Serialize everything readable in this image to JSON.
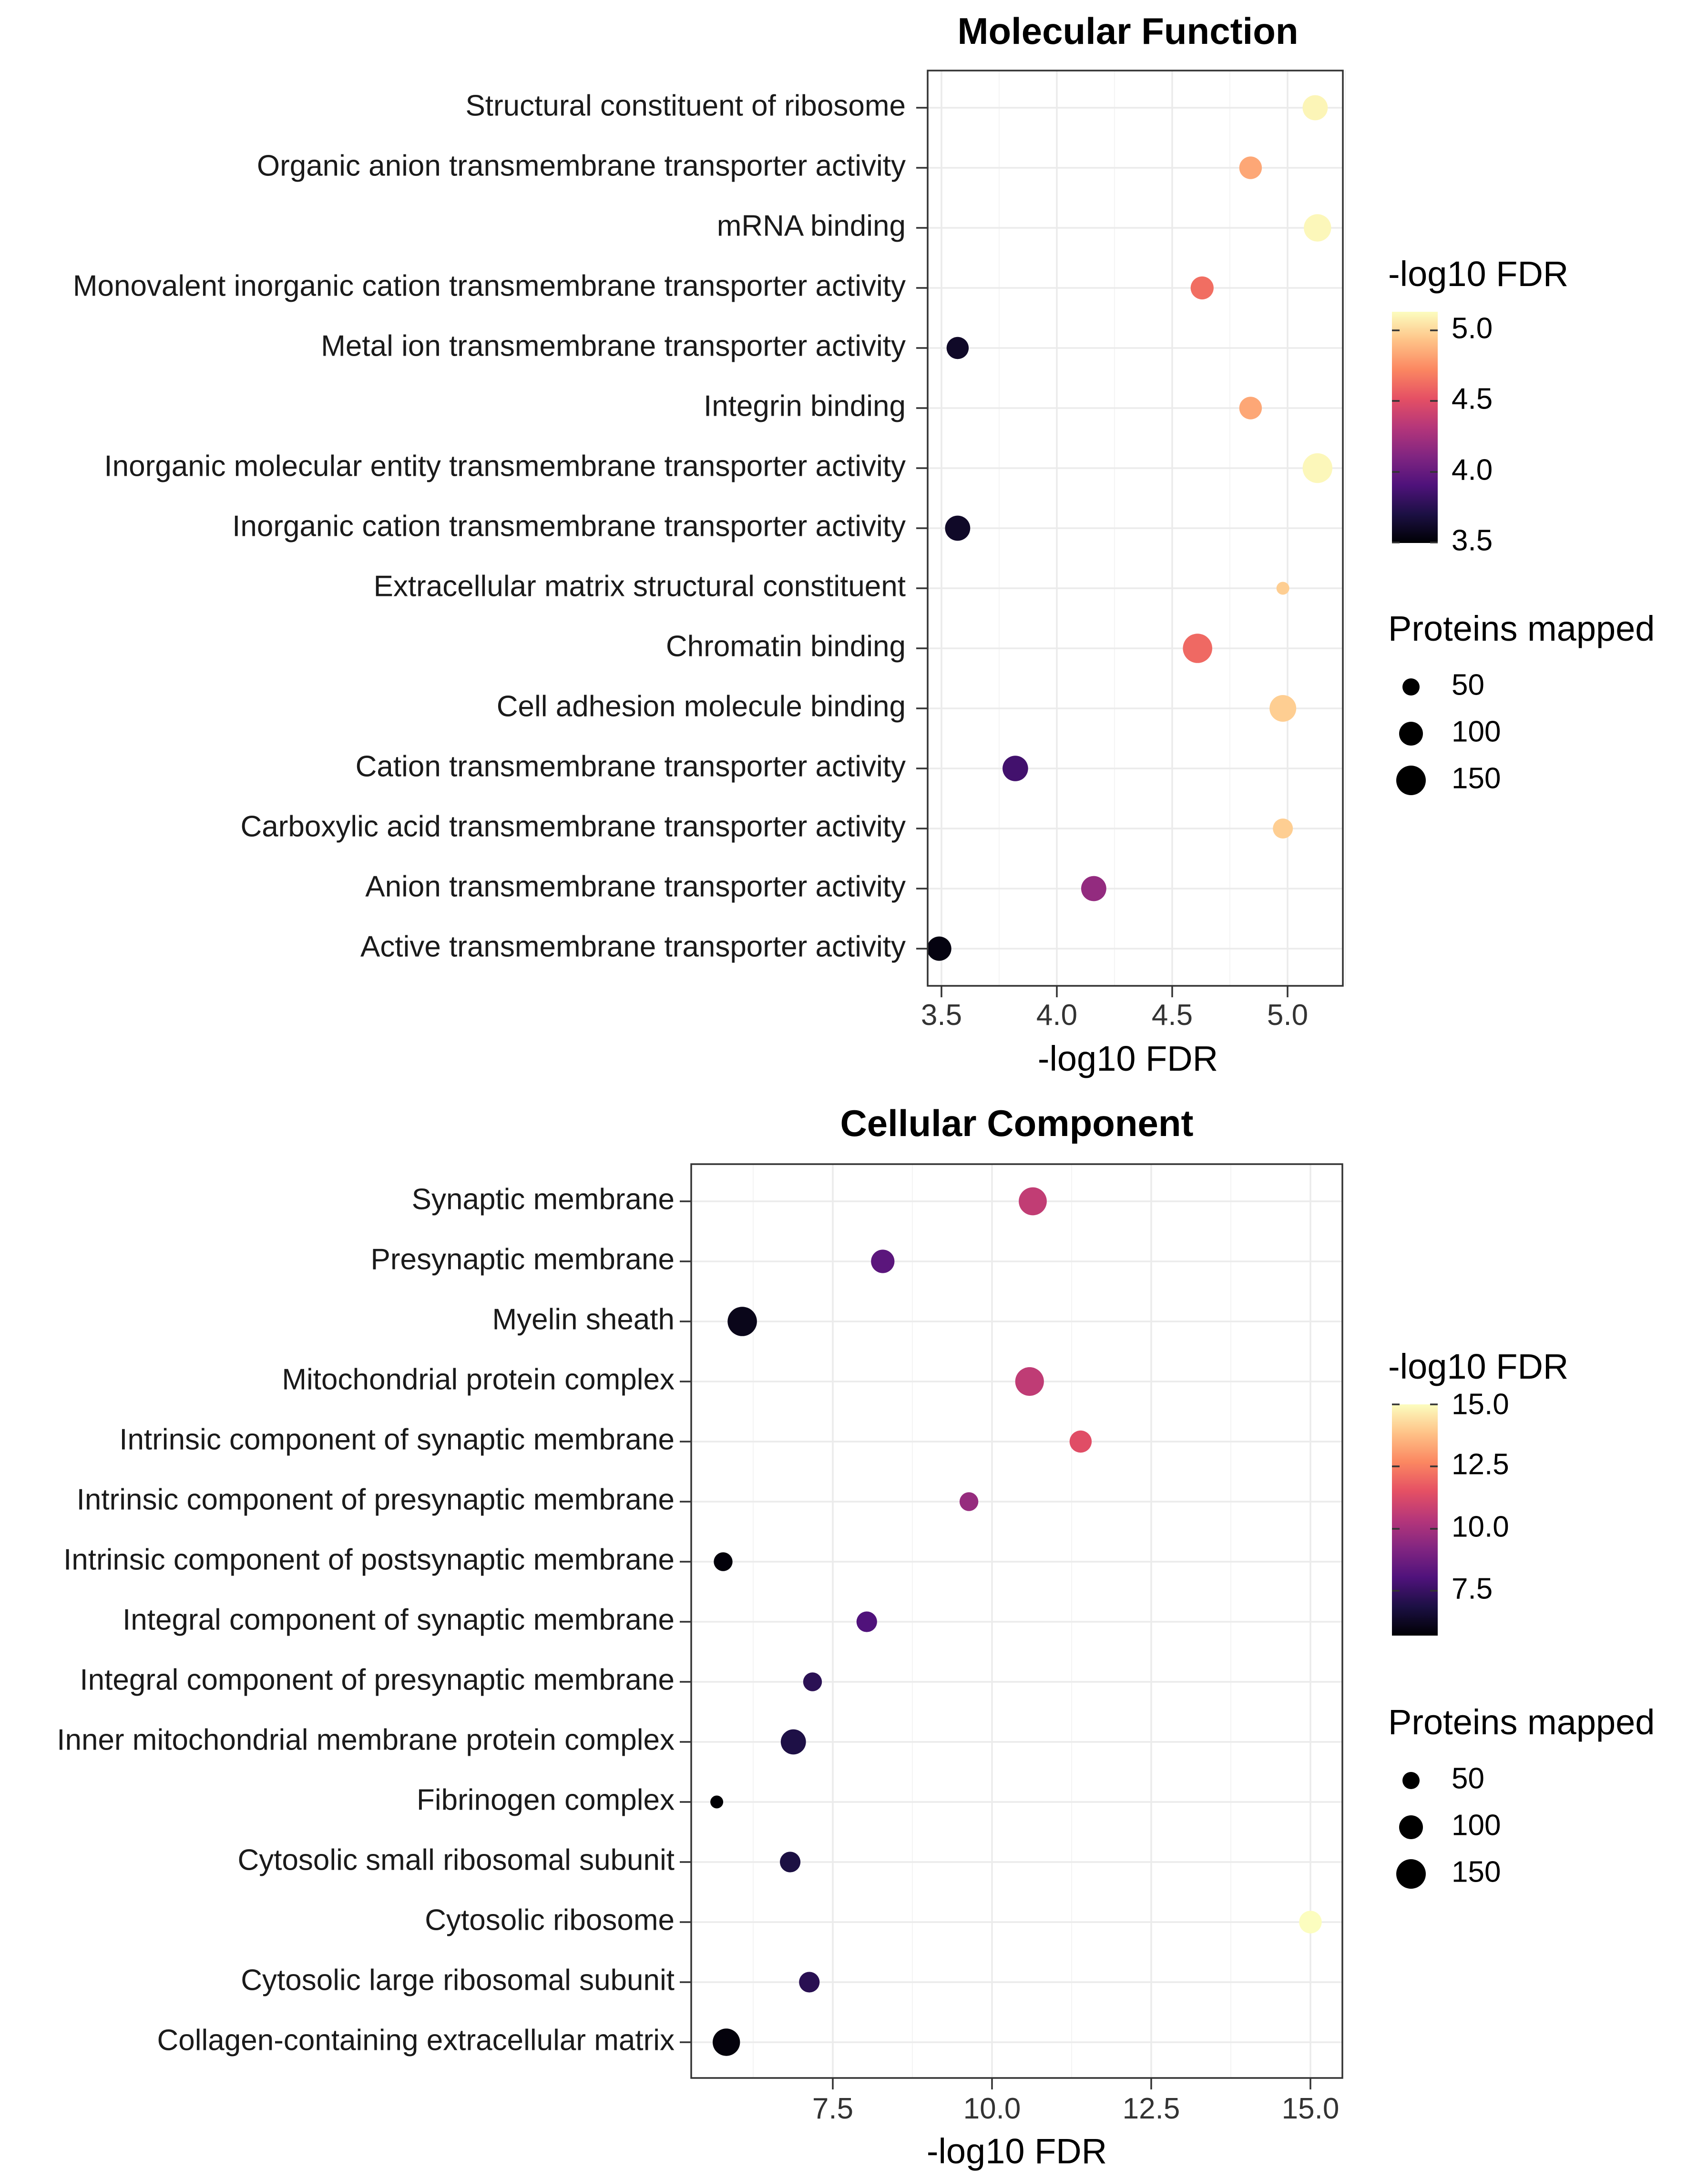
{
  "chart_data": [
    {
      "type": "scatter",
      "title": "Molecular Function",
      "xlabel": "-log10 FDR",
      "ylabel": "",
      "xlim": [
        3.44,
        5.24
      ],
      "xticks": [
        3.5,
        4.0,
        4.5,
        5.0
      ],
      "xtick_labels": [
        "3.5",
        "4.0",
        "4.5",
        "5.0"
      ],
      "grid": true,
      "categories": [
        "Structural constituent of ribosome",
        "Organic anion transmembrane transporter activity",
        "mRNA binding",
        "Monovalent inorganic cation transmembrane transporter activity",
        "Metal ion transmembrane transporter activity",
        "Integrin binding",
        "Inorganic molecular entity transmembrane transporter activity",
        "Inorganic cation transmembrane transporter activity",
        "Extracellular matrix structural constituent",
        "Chromatin binding",
        "Cell adhesion molecule binding",
        "Cation transmembrane transporter activity",
        "Carboxylic acid transmembrane transporter activity",
        "Anion transmembrane transporter activity",
        "Active transmembrane transporter activity"
      ],
      "x": [
        5.12,
        4.84,
        5.13,
        4.63,
        3.57,
        4.84,
        5.13,
        3.57,
        4.98,
        4.61,
        4.98,
        3.82,
        4.98,
        4.16,
        3.49
      ],
      "proteins_mapped": [
        110,
        80,
        140,
        85,
        75,
        80,
        175,
        110,
        10,
        170,
        130,
        115,
        55,
        110,
        100
      ],
      "color_scale": {
        "title": "-log10 FDR",
        "min": 3.45,
        "max": 5.15,
        "ticks": [
          5.0,
          4.5,
          4.0,
          3.5
        ],
        "tick_labels": [
          "5.0",
          "4.5",
          "4.0",
          "3.5"
        ]
      },
      "size_legend": {
        "title": "Proteins mapped",
        "values": [
          50,
          100,
          150
        ],
        "labels": [
          "50",
          "100",
          "150"
        ]
      }
    },
    {
      "type": "scatter",
      "title": "Cellular Component",
      "xlabel": "-log10 FDR",
      "ylabel": "",
      "xlim": [
        5.3,
        15.5
      ],
      "xticks": [
        7.5,
        10.0,
        12.5,
        15.0
      ],
      "xtick_labels": [
        "7.5",
        "10.0",
        "12.5",
        "15.0"
      ],
      "grid": true,
      "categories": [
        "Synaptic membrane",
        "Presynaptic membrane",
        "Myelin sheath",
        "Mitochondrial protein complex",
        "Intrinsic component of synaptic membrane",
        "Intrinsic component of presynaptic membrane",
        "Intrinsic component of postsynaptic membrane",
        "Integral component of synaptic membrane",
        "Integral component of presynaptic membrane",
        "Inner mitochondrial membrane protein complex",
        "Fibrinogen complex",
        "Cytosolic small ribosomal subunit",
        "Cytosolic ribosome",
        "Cytosolic large ribosomal subunit",
        "Collagen-containing extracellular matrix"
      ],
      "x": [
        10.65,
        8.3,
        6.1,
        10.6,
        11.4,
        9.65,
        5.8,
        8.05,
        7.2,
        6.9,
        5.7,
        6.85,
        15.0,
        7.15,
        5.85
      ],
      "proteins_mapped": [
        150,
        90,
        170,
        160,
        75,
        45,
        45,
        60,
        45,
        110,
        10,
        60,
        80,
        60,
        140
      ],
      "color_scale": {
        "title": "-log10 FDR",
        "min": 5.7,
        "max": 15.0,
        "ticks": [
          15.0,
          12.5,
          10.0,
          7.5
        ],
        "tick_labels": [
          "15.0",
          "12.5",
          "10.0",
          "7.5"
        ]
      },
      "size_legend": {
        "title": "Proteins mapped",
        "values": [
          50,
          100,
          150
        ],
        "labels": [
          "50",
          "100",
          "150"
        ]
      }
    }
  ]
}
